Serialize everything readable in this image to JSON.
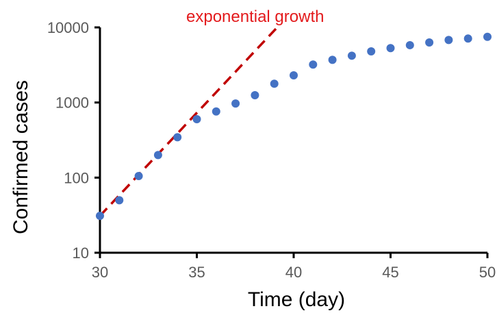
{
  "chart_data": {
    "type": "scatter",
    "title": "",
    "xlabel": "Time (day)",
    "ylabel": "Confirmed cases",
    "xlim": [
      30,
      50
    ],
    "ylim": [
      10,
      10000
    ],
    "y_scale": "log",
    "grid": false,
    "legend": "none",
    "x_ticks": [
      30,
      35,
      40,
      45,
      50
    ],
    "y_ticks": [
      10,
      100,
      1000,
      10000
    ],
    "x_tick_labels": [
      "30",
      "35",
      "40",
      "45",
      "50"
    ],
    "y_tick_labels": [
      "10",
      "100",
      "1000",
      "10000"
    ],
    "series": [
      {
        "type": "scatter",
        "color": "#4472c4",
        "x": [
          30,
          31,
          32,
          33,
          34,
          35,
          36,
          37,
          38,
          39,
          40,
          41,
          42,
          43,
          44,
          45,
          46,
          47,
          48,
          49,
          50
        ],
        "y": [
          31,
          50,
          105,
          200,
          345,
          600,
          760,
          970,
          1250,
          1780,
          2300,
          3200,
          3700,
          4200,
          4800,
          5300,
          5800,
          6300,
          6800,
          7100,
          7500
        ]
      },
      {
        "type": "line",
        "style": "dashed",
        "color": "#c00000",
        "x": [
          30,
          39.15
        ],
        "y": [
          31,
          10000
        ]
      }
    ],
    "annotations": [
      {
        "text": "exponential growth",
        "color": "#e31a1c"
      }
    ]
  }
}
